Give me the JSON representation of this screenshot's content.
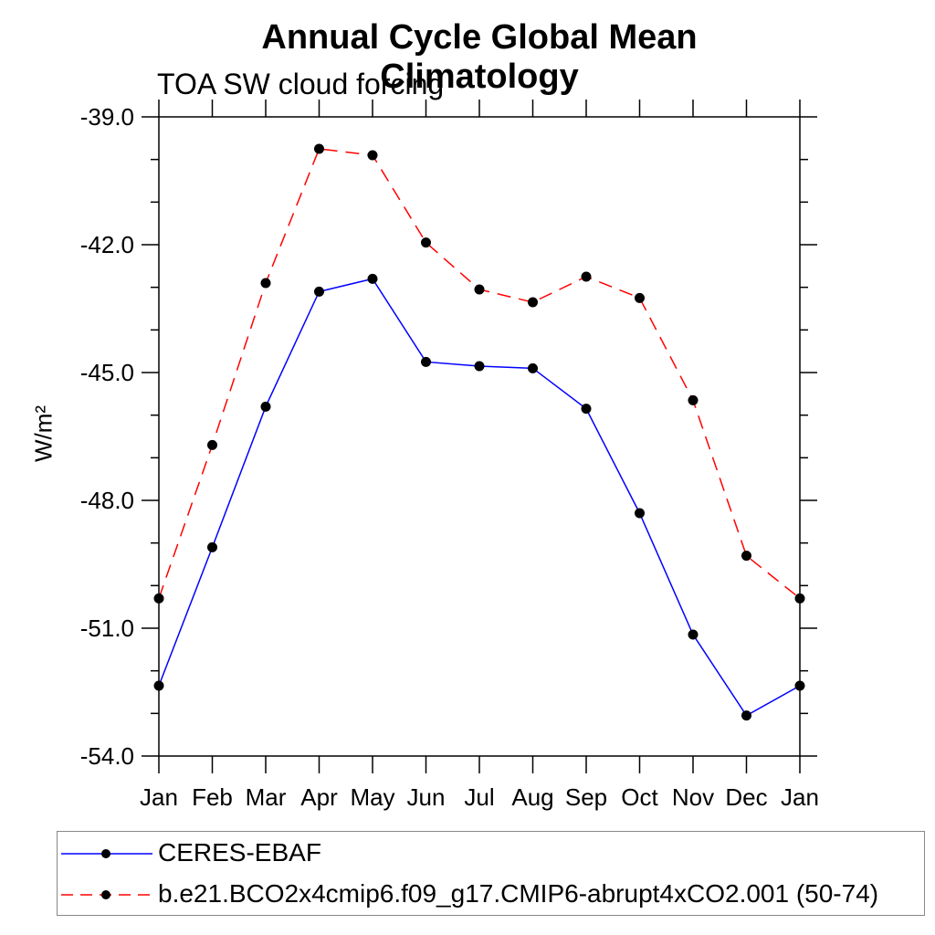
{
  "title": "Annual Cycle Global Mean Climatology",
  "subtitle": "TOA SW cloud forcing",
  "chart_data": {
    "type": "line",
    "categories": [
      "Jan",
      "Feb",
      "Mar",
      "Apr",
      "May",
      "Jun",
      "Jul",
      "Aug",
      "Sep",
      "Oct",
      "Nov",
      "Dec",
      "Jan"
    ],
    "xlabel": "",
    "ylabel": "W/m²",
    "ylim": [
      -54.0,
      -39.0
    ],
    "yticks_major": [
      -39.0,
      -42.0,
      -45.0,
      -48.0,
      -51.0,
      -54.0
    ],
    "ytick_minor_step": 1.0,
    "ytick_label_format": "one-decimal",
    "grid": false,
    "legend_position": "bottom-left-box",
    "series": [
      {
        "name": "CERES-EBAF",
        "color": "#0000ff",
        "line_style": "solid",
        "marker": "circle",
        "marker_color": "#000000",
        "values": [
          -52.35,
          -49.1,
          -45.8,
          -43.1,
          -42.8,
          -44.75,
          -44.85,
          -44.9,
          -45.85,
          -48.3,
          -51.15,
          -53.05,
          -52.35
        ]
      },
      {
        "name": "b.e21.BCO2x4cmip6.f09_g17.CMIP6-abrupt4xCO2.001 (50-74)",
        "color": "#ff0000",
        "line_style": "dashed",
        "marker": "circle",
        "marker_color": "#000000",
        "values": [
          -50.3,
          -46.7,
          -42.9,
          -39.75,
          -39.9,
          -41.95,
          -43.05,
          -43.35,
          -42.75,
          -43.25,
          -45.65,
          -49.3,
          -50.3
        ]
      }
    ]
  }
}
